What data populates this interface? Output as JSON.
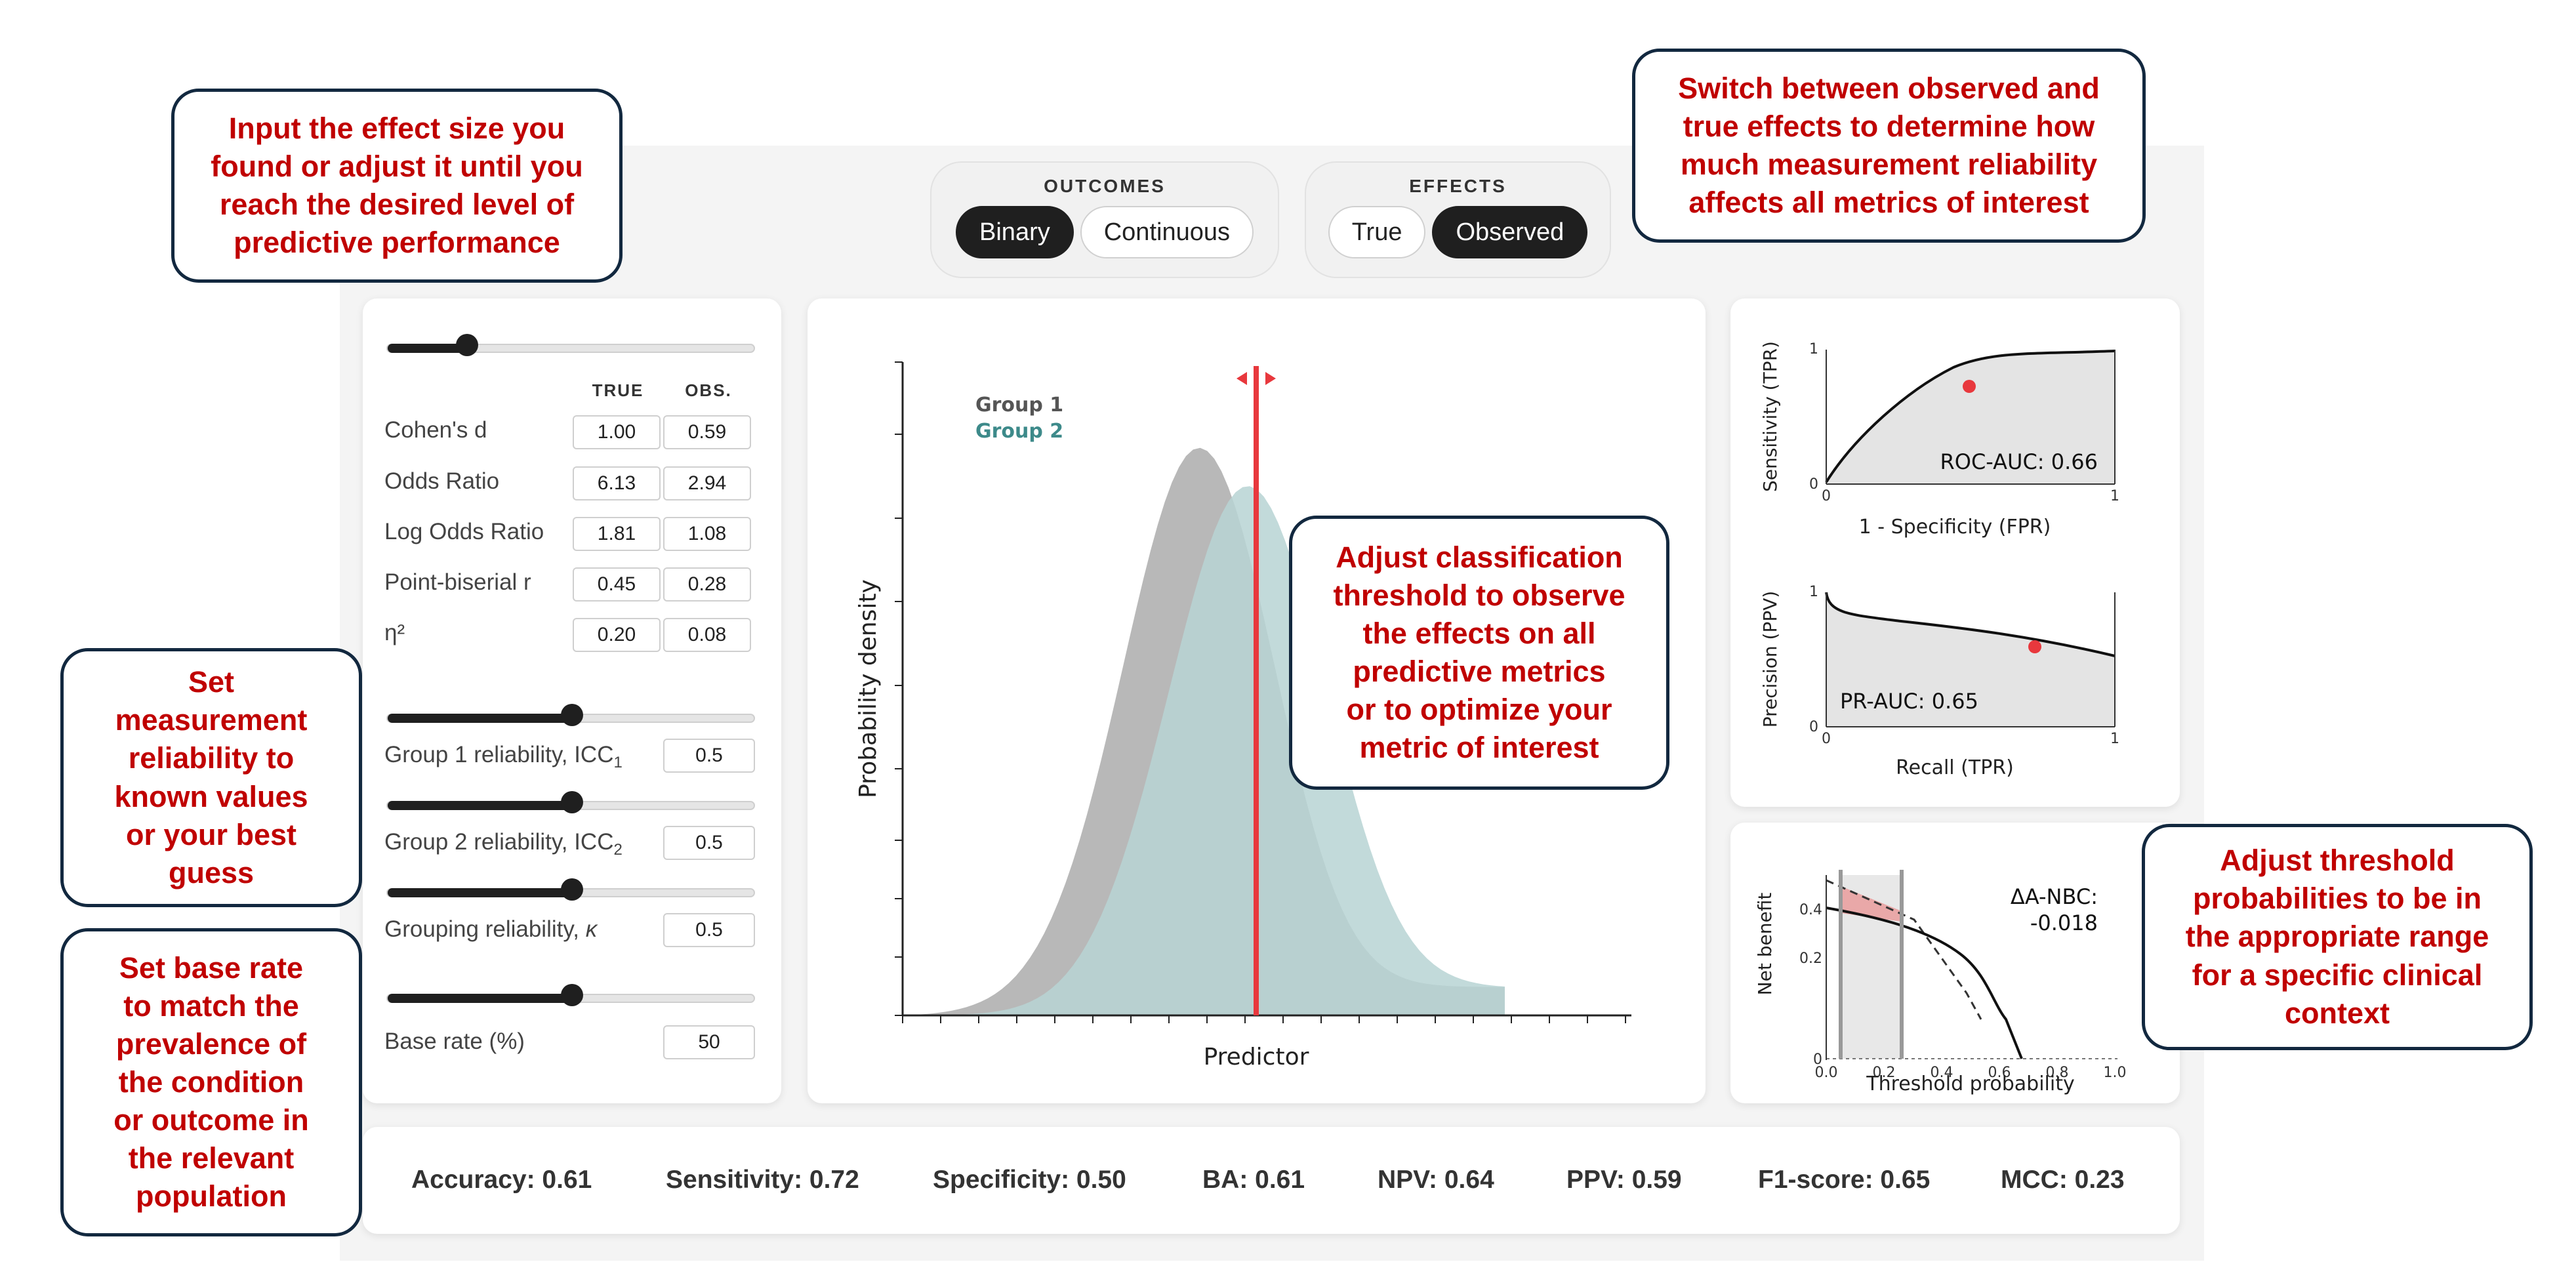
{
  "outcomes": {
    "title": "OUTCOMES",
    "options": [
      "Binary",
      "Continuous"
    ],
    "selected": "Binary"
  },
  "effects": {
    "title": "EFFECTS",
    "options": [
      "True",
      "Observed"
    ],
    "selected": "Observed"
  },
  "effect_size": {
    "slider_value": 0.2,
    "col_true": "TRUE",
    "col_obs": "OBS.",
    "rows": [
      {
        "label": "Cohen's d",
        "true": "1.00",
        "obs": "0.59"
      },
      {
        "label": "Odds Ratio",
        "true": "6.13",
        "obs": "2.94"
      },
      {
        "label": "Log Odds Ratio",
        "true": "1.81",
        "obs": "1.08"
      },
      {
        "label": "Point-biserial r",
        "true": "0.45",
        "obs": "0.28"
      },
      {
        "label": "η²",
        "true": "0.20",
        "obs": "0.08"
      }
    ]
  },
  "reliability": [
    {
      "label": "Group 1 reliability, ICC",
      "sub": "1",
      "value": "0.5"
    },
    {
      "label": "Group 2 reliability, ICC",
      "sub": "2",
      "value": "0.5"
    },
    {
      "label": "Grouping reliability, ",
      "italic": "κ",
      "value": "0.5"
    }
  ],
  "base_rate": {
    "label": "Base rate (%)",
    "value": "50"
  },
  "distribution_chart": {
    "ylabel": "Probability density",
    "xlabel": "Predictor",
    "legend": [
      {
        "name": "Group 1",
        "color": "#555555"
      },
      {
        "name": "Group 2",
        "color": "#3d8a8a"
      }
    ],
    "colors": {
      "group1": "#9a9a9a",
      "group2": "#b7d3d3",
      "overlap": "#7a9c9c",
      "threshold": "#e8383d"
    }
  },
  "roc": {
    "ylabel": "Sensitivity (TPR)",
    "xlabel": "1 - Specificity (FPR)",
    "auc_label": "ROC-AUC: 0.66",
    "x0": "0",
    "x1": "1",
    "y0": "0",
    "y1": "1"
  },
  "pr": {
    "ylabel": "Precision (PPV)",
    "xlabel": "Recall (TPR)",
    "auc_label": "PR-AUC: 0.65",
    "x0": "0",
    "x1": "1",
    "y0": "0",
    "y1": "1"
  },
  "dca": {
    "ylabel": "Net benefit",
    "xlabel": "Threshold probability",
    "delta_label": "ΔA-NBC:",
    "delta_value": "-0.018",
    "yticks": [
      "0.4",
      "0.2",
      "0"
    ],
    "xticks": [
      "0.0",
      "0.2",
      "0.4",
      "0.6",
      "0.8",
      "1.0"
    ]
  },
  "metrics": [
    {
      "label": "Accuracy: 0.61"
    },
    {
      "label": "Sensitivity: 0.72"
    },
    {
      "label": "Specificity: 0.50"
    },
    {
      "label": "BA: 0.61"
    },
    {
      "label": "NPV: 0.64"
    },
    {
      "label": "PPV: 0.59"
    },
    {
      "label": "F1-score: 0.65"
    },
    {
      "label": "MCC: 0.23"
    }
  ],
  "callouts": {
    "effect_size": [
      "Input the effect size you",
      "found or adjust it until you",
      "reach the desired level of",
      "predictive performance"
    ],
    "effects_switch": [
      "Switch between observed and",
      "true effects to determine how",
      "much measurement reliability",
      "affects all metrics of interest"
    ],
    "threshold": [
      "Adjust classification",
      "threshold to observe",
      "the effects on all",
      "predictive metrics",
      "or to optimize your",
      "metric of interest"
    ],
    "reliability": [
      "Set",
      "measurement",
      "reliability to",
      "known values",
      "or your best",
      "guess"
    ],
    "base_rate": [
      "Set base rate",
      "to match the",
      "prevalence of",
      "the condition",
      "or outcome in",
      "the relevant",
      "population"
    ],
    "threshold_prob": [
      "Adjust threshold",
      "probabilities to be in",
      "the appropriate range",
      "for a specific clinical",
      "context"
    ]
  }
}
